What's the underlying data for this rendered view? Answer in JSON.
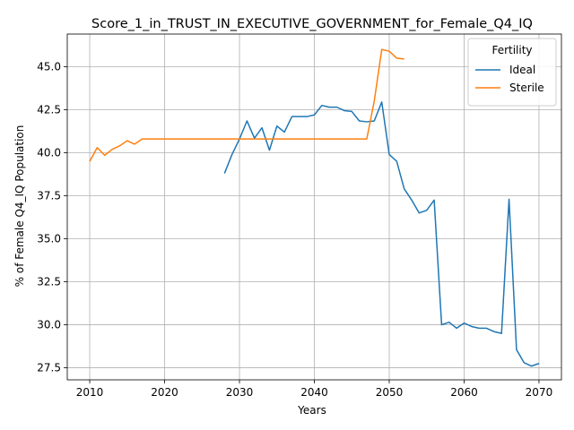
{
  "chart_data": {
    "type": "line",
    "title": "Score_1_in_TRUST_IN_EXECUTIVE_GOVERNMENT_for_Female_Q4_IQ",
    "xlabel": "Years",
    "ylabel": "% of Female Q4_IQ Population",
    "xlim": [
      2007,
      2073
    ],
    "ylim": [
      26.8,
      46.9
    ],
    "xticks": [
      2010,
      2020,
      2030,
      2040,
      2050,
      2060,
      2070
    ],
    "yticks": [
      27.5,
      30.0,
      32.5,
      35.0,
      37.5,
      40.0,
      42.5,
      45.0
    ],
    "grid": true,
    "legend": {
      "title": "Fertility",
      "placement": "top-right"
    },
    "series": [
      {
        "name": "Ideal",
        "color": "#1f77b4",
        "x": [
          2028,
          2029,
          2030,
          2031,
          2032,
          2033,
          2034,
          2035,
          2036,
          2037,
          2038,
          2039,
          2040,
          2041,
          2042,
          2043,
          2044,
          2045,
          2046,
          2047,
          2048,
          2049,
          2050,
          2051,
          2052,
          2053,
          2054,
          2055,
          2056,
          2057,
          2058,
          2059,
          2060,
          2061,
          2062,
          2063,
          2064,
          2065,
          2066,
          2067,
          2068,
          2069,
          2070
        ],
        "y": [
          38.8,
          39.9,
          40.8,
          41.85,
          40.85,
          41.45,
          40.15,
          41.55,
          41.2,
          42.1,
          42.1,
          42.1,
          42.2,
          42.75,
          42.65,
          42.65,
          42.45,
          42.4,
          41.85,
          41.8,
          41.85,
          42.95,
          39.9,
          39.5,
          37.9,
          37.25,
          36.5,
          36.65,
          37.25,
          30.0,
          30.15,
          29.8,
          30.1,
          29.9,
          29.8,
          29.8,
          29.6,
          29.5,
          37.3,
          28.55,
          27.8,
          27.6,
          27.75
        ]
      },
      {
        "name": "Sterile",
        "color": "#ff7f0e",
        "x": [
          2010,
          2011,
          2012,
          2013,
          2014,
          2015,
          2016,
          2017,
          2018,
          2019,
          2020,
          2021,
          2022,
          2023,
          2024,
          2025,
          2026,
          2027,
          2028,
          2029,
          2030,
          2031,
          2032,
          2033,
          2034,
          2035,
          2036,
          2037,
          2038,
          2039,
          2040,
          2041,
          2042,
          2043,
          2044,
          2045,
          2046,
          2047,
          2048,
          2049,
          2050,
          2051,
          2052
        ],
        "y": [
          39.5,
          40.3,
          39.85,
          40.2,
          40.4,
          40.7,
          40.5,
          40.8,
          40.8,
          40.8,
          40.8,
          40.8,
          40.8,
          40.8,
          40.8,
          40.8,
          40.8,
          40.8,
          40.8,
          40.8,
          40.8,
          40.8,
          40.8,
          40.8,
          40.8,
          40.8,
          40.8,
          40.8,
          40.8,
          40.8,
          40.8,
          40.8,
          40.8,
          40.8,
          40.8,
          40.8,
          40.8,
          40.8,
          43.0,
          46.0,
          45.9,
          45.5,
          45.45
        ]
      }
    ]
  }
}
